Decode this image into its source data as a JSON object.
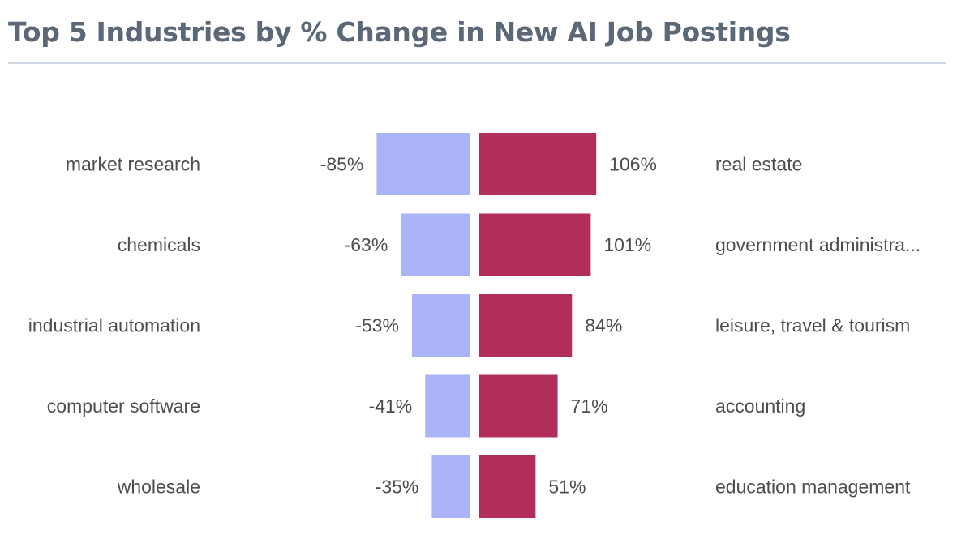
{
  "title": "Top 5 Industries by % Change in New AI Job Postings",
  "colors": {
    "negative": "#aab4f7",
    "positive": "#b02d5c",
    "title": "#5a6878",
    "text": "#4d4d4d",
    "rule": "#cfd7e3"
  },
  "chart_data": {
    "type": "bar",
    "orientation": "diverging-horizontal",
    "series": [
      {
        "values": [
          -85,
          -63,
          -53,
          -41,
          -35
        ],
        "categories": [
          "market research",
          "chemicals",
          "industrial automation",
          "computer software",
          "wholesale"
        ],
        "value_labels": [
          "-85%",
          "-63%",
          "-53%",
          "-41%",
          "-35%"
        ]
      },
      {
        "values": [
          106,
          101,
          84,
          71,
          51
        ],
        "categories": [
          "real estate",
          "government administra...",
          "leisure, travel & tourism",
          "accounting",
          "education management"
        ],
        "value_labels": [
          "106%",
          "101%",
          "84%",
          "71%",
          "51%"
        ]
      }
    ],
    "grid": false,
    "legend": "none"
  }
}
